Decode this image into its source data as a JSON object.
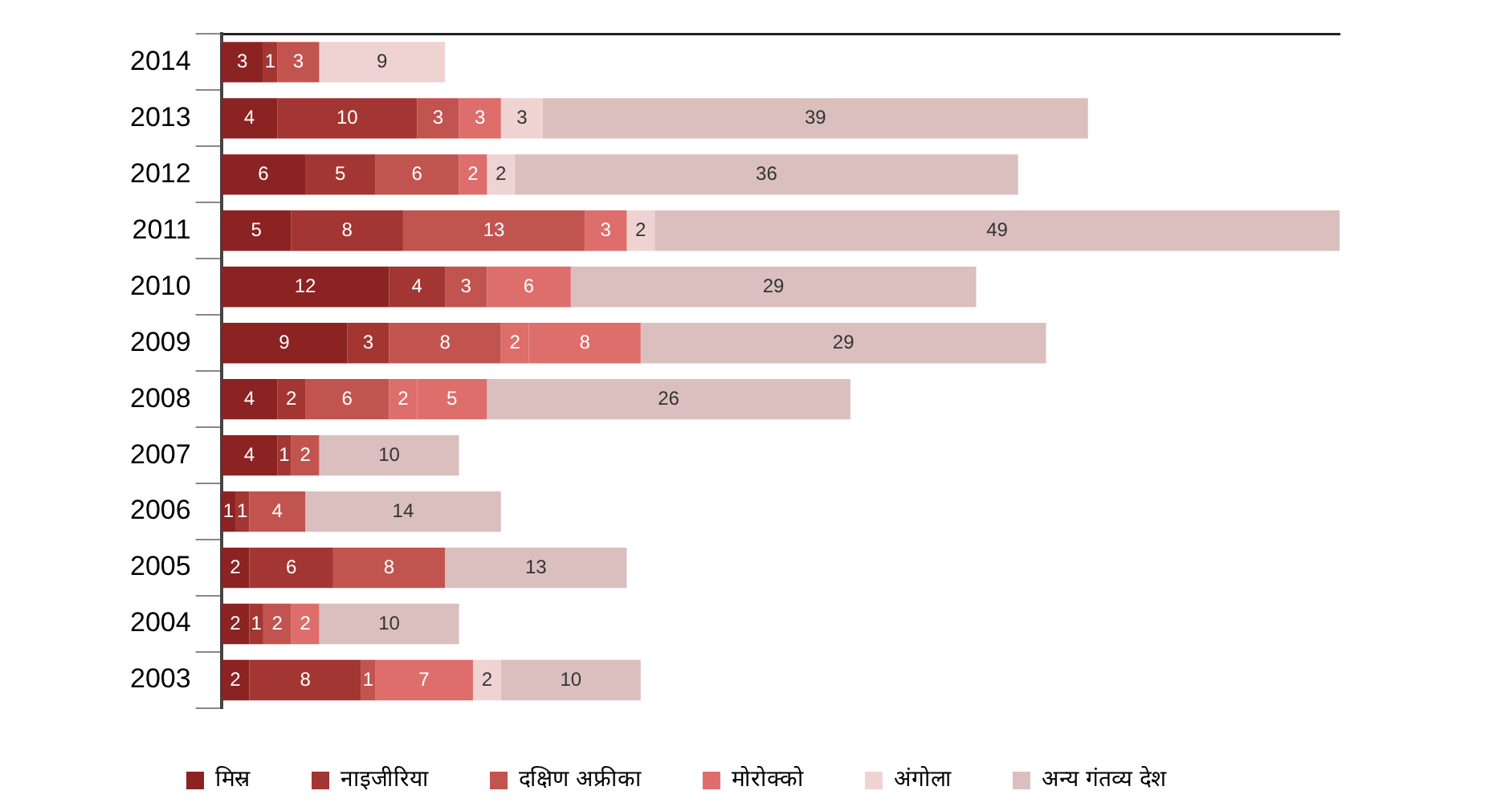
{
  "chart_data": {
    "type": "bar",
    "orientation": "horizontal",
    "stacked": true,
    "categories": [
      "2014",
      "2013",
      "2012",
      "2011",
      "2010",
      "2009",
      "2008",
      "2007",
      "2006",
      "2005",
      "2004",
      "2003"
    ],
    "series": [
      {
        "name": "मिस्र",
        "color": "#8b2323",
        "values": [
          3,
          4,
          6,
          5,
          12,
          9,
          4,
          4,
          1,
          2,
          2,
          2
        ]
      },
      {
        "name": "नाइजीरिया",
        "color": "#a33632",
        "values": [
          1,
          10,
          5,
          8,
          4,
          3,
          2,
          1,
          1,
          6,
          1,
          8
        ]
      },
      {
        "name": "दक्षिण अफ्रीका",
        "color": "#c25450",
        "values": [
          3,
          3,
          6,
          13,
          3,
          8,
          6,
          2,
          4,
          8,
          2,
          1
        ]
      },
      {
        "name": "मोरोक्को",
        "color": "#dd6e6b",
        "values": [
          null,
          3,
          2,
          3,
          6,
          2,
          2,
          null,
          null,
          null,
          2,
          7
        ]
      },
      {
        "name": "अंगोला",
        "color": "#efd3d3",
        "colors": [
          "#efd3d3",
          "#efd3d3",
          "#efd3d3",
          "#efd3d3",
          "#efd3d3",
          "#dd6e6b",
          "#dd6e6b",
          "#efd3d3",
          "#efd3d3",
          "#efd3d3",
          "#efd3d3",
          "#efd3d3"
        ],
        "values": [
          9,
          3,
          2,
          2,
          null,
          8,
          5,
          null,
          null,
          null,
          null,
          2
        ]
      },
      {
        "name": "अन्य गंतव्य देश",
        "color": "#dbbfbf",
        "values": [
          null,
          39,
          36,
          49,
          29,
          29,
          26,
          10,
          14,
          13,
          10,
          10
        ]
      }
    ],
    "xlim": [
      0,
      80
    ],
    "tick_labels": "y",
    "data_labels": true,
    "legend": "bottom",
    "grid": false
  }
}
